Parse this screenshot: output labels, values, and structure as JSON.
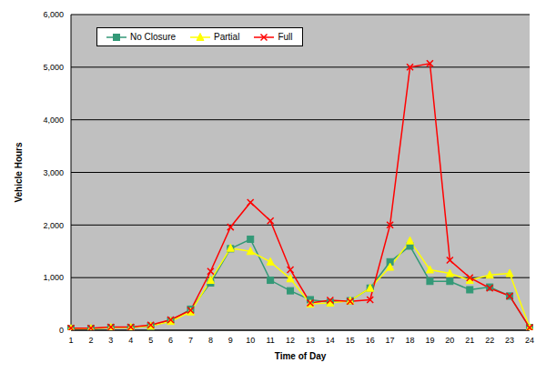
{
  "chart_data": {
    "type": "line",
    "x_label": "Time of Day",
    "y_label": "Vehicle Hours",
    "categories": [
      "1",
      "2",
      "3",
      "4",
      "5",
      "6",
      "7",
      "8",
      "9",
      "10",
      "11",
      "12",
      "13",
      "14",
      "15",
      "16",
      "17",
      "18",
      "19",
      "20",
      "21",
      "22",
      "23",
      "24"
    ],
    "series": [
      {
        "name": "No Closure",
        "color": "#339977",
        "marker": "square",
        "values": [
          30,
          30,
          50,
          50,
          80,
          180,
          400,
          900,
          1550,
          1730,
          950,
          750,
          580,
          530,
          560,
          800,
          1300,
          1600,
          930,
          930,
          770,
          820,
          650,
          50
        ]
      },
      {
        "name": "Partial",
        "color": "#ffff00",
        "marker": "triangle",
        "values": [
          30,
          30,
          50,
          50,
          80,
          170,
          350,
          950,
          1560,
          1500,
          1300,
          980,
          500,
          520,
          560,
          800,
          1200,
          1700,
          1150,
          1080,
          950,
          1050,
          1080,
          50
        ]
      },
      {
        "name": "Full",
        "color": "#ff0000",
        "marker": "x",
        "values": [
          40,
          40,
          60,
          60,
          100,
          200,
          380,
          1120,
          1960,
          2430,
          2080,
          1150,
          520,
          570,
          550,
          580,
          2000,
          5000,
          5070,
          1330,
          1000,
          800,
          650,
          50
        ]
      }
    ],
    "ylim": [
      0,
      6000
    ],
    "yticks": [
      0,
      {
        "value": 1000,
        "label": "1,000"
      },
      {
        "value": 2000,
        "label": "2,000"
      },
      {
        "value": 3000,
        "label": "3,000"
      },
      {
        "value": 4000,
        "label": "4,000"
      },
      {
        "value": 5000,
        "label": "5,000"
      },
      {
        "value": 6000,
        "label": "6,000"
      }
    ],
    "grid": true,
    "legend": "upper left"
  }
}
